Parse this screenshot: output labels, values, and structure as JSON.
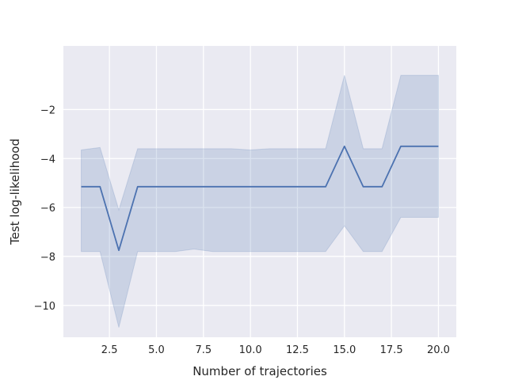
{
  "chart_data": {
    "type": "line",
    "xlabel": "Number of trajectories",
    "ylabel": "Test log-likelihood",
    "xlim": [
      0.05,
      20.95
    ],
    "ylim": [
      -11.3,
      0.6
    ],
    "grid": true,
    "x_ticks": [
      {
        "value": 2.5,
        "label": "2.5"
      },
      {
        "value": 5.0,
        "label": "5.0"
      },
      {
        "value": 7.5,
        "label": "7.5"
      },
      {
        "value": 10.0,
        "label": "10.0"
      },
      {
        "value": 12.5,
        "label": "12.5"
      },
      {
        "value": 15.0,
        "label": "15.0"
      },
      {
        "value": 17.5,
        "label": "17.5"
      },
      {
        "value": 20.0,
        "label": "20.0"
      }
    ],
    "y_ticks": [
      {
        "value": -10,
        "label": "−10"
      },
      {
        "value": -8,
        "label": "−8"
      },
      {
        "value": -6,
        "label": "−6"
      },
      {
        "value": -4,
        "label": "−4"
      },
      {
        "value": -2,
        "label": "−2"
      }
    ],
    "series": [
      {
        "color": "#4c72b0",
        "x": [
          1,
          2,
          3,
          4,
          5,
          6,
          7,
          8,
          9,
          10,
          11,
          12,
          13,
          14,
          15,
          16,
          17,
          18,
          19,
          20
        ],
        "y": [
          -5.15,
          -5.15,
          -7.75,
          -5.15,
          -5.15,
          -5.15,
          -5.15,
          -5.15,
          -5.15,
          -5.15,
          -5.15,
          -5.15,
          -5.15,
          -5.15,
          -3.5,
          -5.15,
          -5.15,
          -3.5,
          -3.5,
          -3.5
        ],
        "band_upper": [
          -3.65,
          -3.55,
          -6.1,
          -3.6,
          -3.6,
          -3.6,
          -3.6,
          -3.6,
          -3.6,
          -3.65,
          -3.6,
          -3.6,
          -3.6,
          -3.6,
          -0.6,
          -3.6,
          -3.6,
          -0.6,
          -0.6,
          -0.6
        ],
        "band_lower": [
          -7.8,
          -7.8,
          -10.9,
          -7.8,
          -7.8,
          -7.8,
          -7.7,
          -7.8,
          -7.8,
          -7.8,
          -7.8,
          -7.8,
          -7.8,
          -7.8,
          -6.75,
          -7.8,
          -7.8,
          -6.4,
          -6.4,
          -6.4
        ]
      }
    ]
  }
}
